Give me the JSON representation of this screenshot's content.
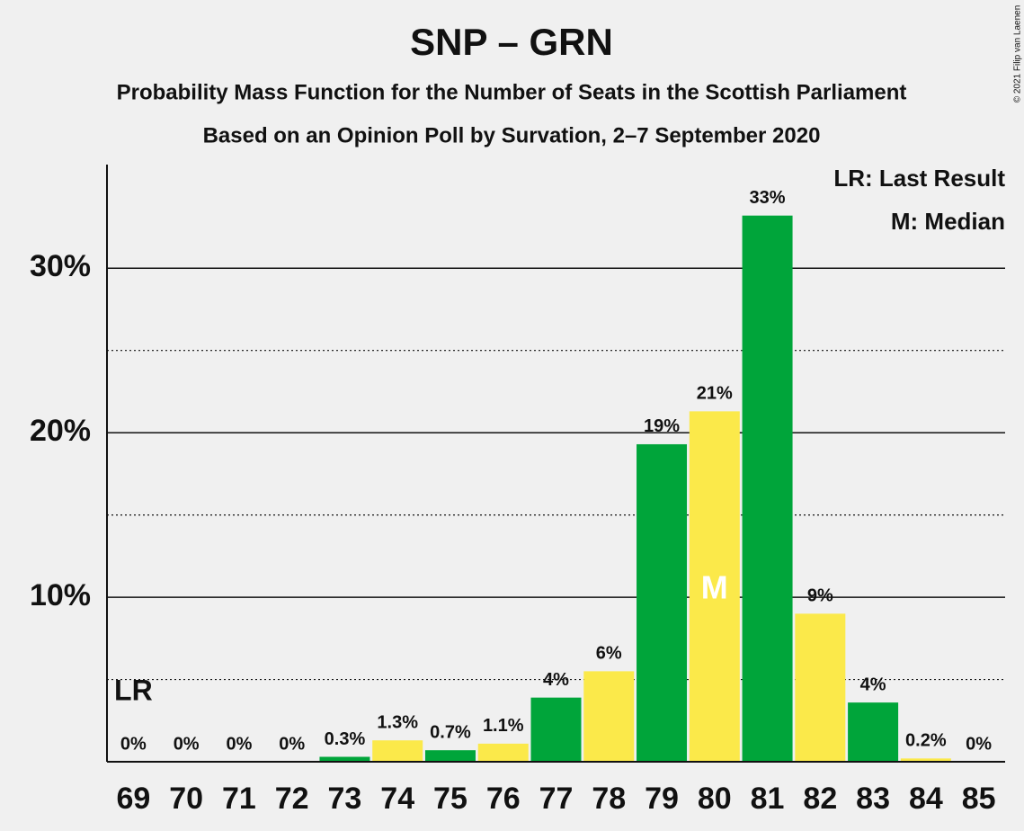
{
  "chart_data": {
    "type": "bar",
    "title": "SNP – GRN",
    "subtitle": [
      "Probability Mass Function for the Number of Seats in the Scottish Parliament",
      "Based on an Opinion Poll by Survation, 2–7 September 2020"
    ],
    "credit": "© 2021 Filip van Laenen",
    "categories": [
      69,
      70,
      71,
      72,
      73,
      74,
      75,
      76,
      77,
      78,
      79,
      80,
      81,
      82,
      83,
      84,
      85
    ],
    "values": [
      0,
      0,
      0,
      0,
      0.3,
      1.3,
      0.7,
      1.1,
      3.9,
      5.5,
      19.3,
      21.3,
      33.2,
      9.0,
      3.6,
      0.2,
      0
    ],
    "value_labels": [
      "0%",
      "0%",
      "0%",
      "0%",
      "0.3%",
      "1.3%",
      "0.7%",
      "1.1%",
      "4%",
      "6%",
      "19%",
      "21%",
      "33%",
      "9%",
      "4%",
      "0.2%",
      "0%"
    ],
    "colors": [
      "#00a53a",
      "#fbe94a"
    ],
    "ylim": [
      0,
      36.3
    ],
    "yticks": [
      {
        "value": 10,
        "label": "10%"
      },
      {
        "value": 20,
        "label": "20%"
      },
      {
        "value": 30,
        "label": "30%"
      }
    ],
    "minor_grid": [
      5,
      15,
      25
    ],
    "grid": true,
    "markers": [
      {
        "label": "LR",
        "x": 69
      },
      {
        "label": "M",
        "x": 80
      }
    ],
    "legend": [
      "LR: Last Result",
      "M: Median"
    ],
    "legend_position": "upper right"
  }
}
